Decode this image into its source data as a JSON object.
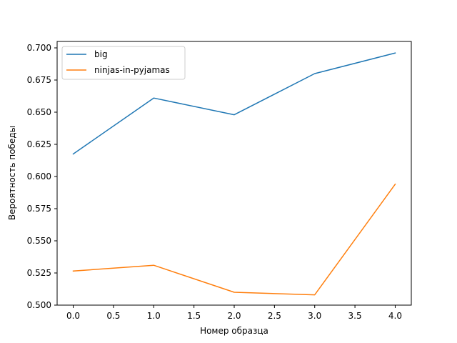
{
  "chart_data": {
    "type": "line",
    "title": "",
    "xlabel": "Номер образца",
    "ylabel": "Вероятность победы",
    "xlim": [
      -0.2,
      4.2
    ],
    "ylim": [
      0.5,
      0.705
    ],
    "x": [
      0,
      1,
      2,
      3,
      4
    ],
    "xticks": [
      "0.0",
      "0.5",
      "1.0",
      "1.5",
      "2.0",
      "2.5",
      "3.0",
      "3.5",
      "4.0"
    ],
    "yticks": [
      "0.500",
      "0.525",
      "0.550",
      "0.575",
      "0.600",
      "0.625",
      "0.650",
      "0.675",
      "0.700"
    ],
    "grid": false,
    "legend_position": "top-left",
    "series": [
      {
        "name": "big",
        "color": "#1f77b4",
        "values": [
          0.6175,
          0.661,
          0.648,
          0.68,
          0.696
        ]
      },
      {
        "name": "ninjas-in-pyjamas",
        "color": "#ff7f0e",
        "values": [
          0.5265,
          0.531,
          0.51,
          0.508,
          0.594
        ]
      }
    ]
  }
}
